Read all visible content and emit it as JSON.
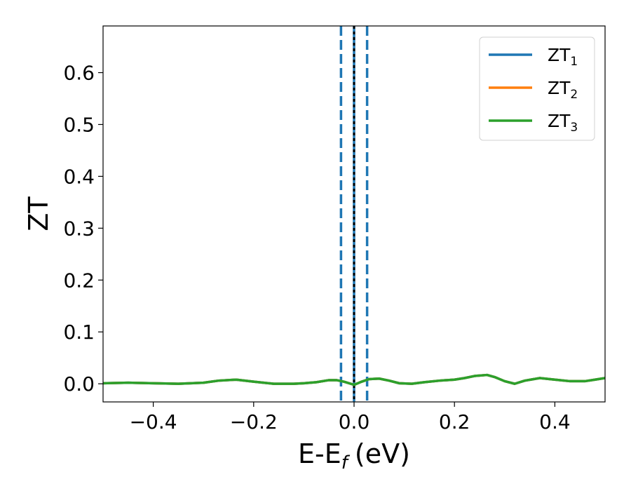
{
  "chart_data": {
    "type": "line",
    "xlabel": "E-E",
    "xlabel_sub": "f",
    "xlabel_unit": "(eV)",
    "ylabel": "ZT",
    "xlim": [
      -0.5,
      0.5
    ],
    "ylim": [
      -0.035,
      0.69
    ],
    "xticks": [
      -0.4,
      -0.2,
      0.0,
      0.2,
      0.4
    ],
    "xtick_labels": [
      "−0.4",
      "−0.2",
      "0.0",
      "0.2",
      "0.4"
    ],
    "yticks": [
      0.0,
      0.1,
      0.2,
      0.3,
      0.4,
      0.5,
      0.6
    ],
    "ytick_labels": [
      "0.0",
      "0.1",
      "0.2",
      "0.3",
      "0.4",
      "0.5",
      "0.6"
    ],
    "grid": false,
    "legend_position": "top-right",
    "series": [
      {
        "name": "ZT",
        "sub": "1",
        "color": "#1f77b4",
        "x": [
          -0.5,
          -0.45,
          -0.4,
          -0.35,
          -0.3,
          -0.27,
          -0.235,
          -0.2,
          -0.16,
          -0.12,
          -0.1,
          -0.075,
          -0.05,
          -0.035,
          -0.02,
          -0.01,
          0.0,
          0.015,
          0.03,
          0.05,
          0.07,
          0.09,
          0.115,
          0.14,
          0.17,
          0.2,
          0.22,
          0.24,
          0.265,
          0.28,
          0.3,
          0.32,
          0.34,
          0.37,
          0.4,
          0.43,
          0.46,
          0.48,
          0.5
        ],
        "y": [
          0.001,
          0.002,
          0.001,
          0.0,
          0.002,
          0.006,
          0.008,
          0.004,
          0.0,
          0.0,
          0.001,
          0.003,
          0.007,
          0.007,
          0.004,
          0.001,
          -0.002,
          0.004,
          0.009,
          0.01,
          0.006,
          0.001,
          0.0,
          0.003,
          0.006,
          0.008,
          0.011,
          0.015,
          0.017,
          0.013,
          0.005,
          0.0,
          0.006,
          0.011,
          0.008,
          0.005,
          0.005,
          0.008,
          0.011
        ]
      },
      {
        "name": "ZT",
        "sub": "2",
        "color": "#ff7f0e",
        "x": [
          -0.5,
          -0.45,
          -0.4,
          -0.35,
          -0.3,
          -0.27,
          -0.235,
          -0.2,
          -0.16,
          -0.12,
          -0.1,
          -0.075,
          -0.05,
          -0.035,
          -0.02,
          -0.01,
          0.0,
          0.015,
          0.03,
          0.05,
          0.07,
          0.09,
          0.115,
          0.14,
          0.17,
          0.2,
          0.22,
          0.24,
          0.265,
          0.28,
          0.3,
          0.32,
          0.34,
          0.37,
          0.4,
          0.43,
          0.46,
          0.48,
          0.5
        ],
        "y": [
          0.001,
          0.002,
          0.001,
          0.0,
          0.002,
          0.006,
          0.008,
          0.004,
          0.0,
          0.0,
          0.001,
          0.003,
          0.007,
          0.007,
          0.004,
          0.001,
          -0.002,
          0.004,
          0.009,
          0.01,
          0.006,
          0.001,
          0.0,
          0.003,
          0.006,
          0.008,
          0.011,
          0.015,
          0.017,
          0.013,
          0.005,
          0.0,
          0.006,
          0.011,
          0.008,
          0.005,
          0.005,
          0.008,
          0.011
        ]
      },
      {
        "name": "ZT",
        "sub": "3",
        "color": "#2ca02c",
        "x": [
          -0.5,
          -0.45,
          -0.4,
          -0.35,
          -0.3,
          -0.27,
          -0.235,
          -0.2,
          -0.16,
          -0.12,
          -0.1,
          -0.075,
          -0.05,
          -0.035,
          -0.02,
          -0.01,
          0.0,
          0.015,
          0.03,
          0.05,
          0.07,
          0.09,
          0.115,
          0.14,
          0.17,
          0.2,
          0.22,
          0.24,
          0.265,
          0.28,
          0.3,
          0.32,
          0.34,
          0.37,
          0.4,
          0.43,
          0.46,
          0.48,
          0.5
        ],
        "y": [
          0.001,
          0.002,
          0.001,
          0.0,
          0.002,
          0.006,
          0.008,
          0.004,
          0.0,
          0.0,
          0.001,
          0.003,
          0.007,
          0.007,
          0.004,
          0.001,
          -0.002,
          0.004,
          0.009,
          0.01,
          0.006,
          0.001,
          0.0,
          0.003,
          0.006,
          0.008,
          0.011,
          0.015,
          0.017,
          0.013,
          0.005,
          0.0,
          0.006,
          0.011,
          0.008,
          0.005,
          0.005,
          0.008,
          0.011
        ]
      }
    ],
    "vlines": [
      {
        "x": -0.026,
        "color": "#1f77b4",
        "style": "dashed"
      },
      {
        "x": 0.026,
        "color": "#1f77b4",
        "style": "dashed"
      },
      {
        "x": 0.0,
        "color": "#1f77b4",
        "style": "solid"
      },
      {
        "x": 0.0,
        "color": "#000000",
        "style": "dotted"
      }
    ]
  }
}
